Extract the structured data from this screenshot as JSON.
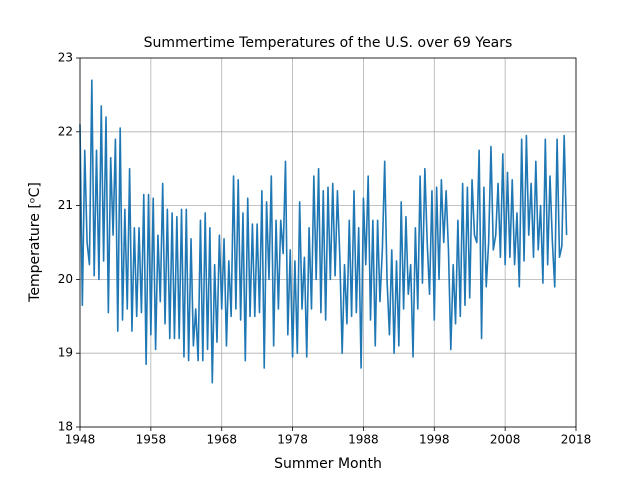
{
  "chart_data": {
    "type": "line",
    "title": "Summertime Temperatures of the U.S. over 69 Years",
    "x_label": "Summer Month",
    "y_label": "Temperature [ᵒC]",
    "color": "#1f77b4",
    "grid": true,
    "xlim": [
      1948,
      2018
    ],
    "xticks": [
      1948,
      1958,
      1968,
      1978,
      1988,
      1998,
      2008,
      2018
    ],
    "ylim": [
      18,
      23
    ],
    "yticks": [
      18,
      19,
      20,
      21,
      22,
      23
    ],
    "x": [
      1948,
      1948.33,
      1948.67,
      1949,
      1949.33,
      1949.67,
      1950,
      1950.33,
      1950.67,
      1951,
      1951.33,
      1951.67,
      1952,
      1952.33,
      1952.67,
      1953,
      1953.33,
      1953.67,
      1954,
      1954.33,
      1954.67,
      1955,
      1955.33,
      1955.67,
      1956,
      1956.33,
      1956.67,
      1957,
      1957.33,
      1957.67,
      1958,
      1958.33,
      1958.67,
      1959,
      1959.33,
      1959.67,
      1960,
      1960.33,
      1960.67,
      1961,
      1961.33,
      1961.67,
      1962,
      1962.33,
      1962.67,
      1963,
      1963.33,
      1963.67,
      1964,
      1964.33,
      1964.67,
      1965,
      1965.33,
      1965.67,
      1966,
      1966.33,
      1966.67,
      1967,
      1967.33,
      1967.67,
      1968,
      1968.33,
      1968.67,
      1969,
      1969.33,
      1969.67,
      1970,
      1970.33,
      1970.67,
      1971,
      1971.33,
      1971.67,
      1972,
      1972.33,
      1972.67,
      1973,
      1973.33,
      1973.67,
      1974,
      1974.33,
      1974.67,
      1975,
      1975.33,
      1975.67,
      1976,
      1976.33,
      1976.67,
      1977,
      1977.33,
      1977.67,
      1978,
      1978.33,
      1978.67,
      1979,
      1979.33,
      1979.67,
      1980,
      1980.33,
      1980.67,
      1981,
      1981.33,
      1981.67,
      1982,
      1982.33,
      1982.67,
      1983,
      1983.33,
      1983.67,
      1984,
      1984.33,
      1984.67,
      1985,
      1985.33,
      1985.67,
      1986,
      1986.33,
      1986.67,
      1987,
      1987.33,
      1987.67,
      1988,
      1988.33,
      1988.67,
      1989,
      1989.33,
      1989.67,
      1990,
      1990.33,
      1990.67,
      1991,
      1991.33,
      1991.67,
      1992,
      1992.33,
      1992.67,
      1993,
      1993.33,
      1993.67,
      1994,
      1994.33,
      1994.67,
      1995,
      1995.33,
      1995.67,
      1996,
      1996.33,
      1996.67,
      1997,
      1997.33,
      1997.67,
      1998,
      1998.33,
      1998.67,
      1999,
      1999.33,
      1999.67,
      2000,
      2000.33,
      2000.67,
      2001,
      2001.33,
      2001.67,
      2002,
      2002.33,
      2002.67,
      2003,
      2003.33,
      2003.67,
      2004,
      2004.33,
      2004.67,
      2005,
      2005.33,
      2005.67,
      2006,
      2006.33,
      2006.67,
      2007,
      2007.33,
      2007.67,
      2008,
      2008.33,
      2008.67,
      2009,
      2009.33,
      2009.67,
      2010,
      2010.33,
      2010.67,
      2011,
      2011.33,
      2011.67,
      2012,
      2012.33,
      2012.67,
      2013,
      2013.33,
      2013.67,
      2014,
      2014.33,
      2014.67,
      2015,
      2015.33,
      2015.67,
      2016,
      2016.33,
      2016.67
    ],
    "values": [
      22.1,
      19.65,
      21.75,
      20.5,
      20.2,
      22.7,
      20.05,
      21.75,
      20.0,
      22.35,
      20.25,
      22.2,
      19.55,
      21.65,
      20.6,
      21.9,
      19.3,
      22.05,
      19.45,
      20.95,
      19.6,
      21.5,
      19.3,
      20.7,
      19.5,
      20.7,
      19.55,
      21.15,
      18.85,
      21.15,
      19.25,
      21.1,
      19.05,
      20.6,
      19.7,
      21.3,
      19.4,
      20.95,
      19.2,
      20.9,
      19.2,
      20.85,
      19.2,
      20.95,
      18.95,
      20.95,
      18.9,
      20.55,
      19.1,
      19.6,
      18.9,
      20.8,
      18.9,
      20.9,
      19.05,
      20.7,
      18.6,
      20.2,
      19.15,
      20.6,
      19.6,
      20.55,
      19.1,
      20.25,
      19.5,
      21.4,
      19.6,
      21.35,
      19.45,
      20.9,
      18.9,
      21.1,
      19.5,
      20.75,
      19.5,
      20.75,
      19.55,
      21.2,
      18.8,
      21.05,
      20.0,
      21.4,
      19.1,
      20.8,
      19.6,
      20.8,
      20.35,
      21.6,
      19.25,
      20.4,
      18.95,
      20.25,
      19.0,
      21.05,
      19.6,
      20.3,
      18.95,
      20.7,
      19.6,
      21.4,
      20.0,
      21.5,
      19.55,
      21.2,
      19.45,
      21.25,
      20.0,
      21.3,
      20.05,
      21.2,
      20.3,
      19.0,
      20.2,
      19.4,
      20.8,
      19.5,
      21.2,
      19.55,
      20.7,
      18.8,
      21.1,
      20.2,
      21.4,
      19.45,
      20.8,
      19.1,
      20.8,
      19.7,
      20.4,
      21.6,
      20.0,
      19.25,
      20.4,
      19.0,
      20.25,
      19.1,
      21.05,
      19.6,
      20.85,
      19.8,
      20.2,
      18.95,
      20.7,
      19.6,
      21.4,
      19.95,
      21.5,
      20.5,
      19.8,
      21.2,
      19.45,
      21.25,
      20.0,
      21.35,
      20.5,
      21.2,
      20.4,
      19.05,
      20.2,
      19.4,
      20.8,
      19.5,
      21.3,
      19.65,
      21.25,
      19.75,
      21.35,
      20.6,
      20.5,
      21.75,
      19.2,
      21.25,
      19.9,
      20.5,
      21.8,
      20.4,
      20.6,
      21.3,
      20.3,
      21.7,
      20.2,
      21.45,
      20.3,
      21.35,
      20.2,
      20.9,
      19.9,
      21.9,
      20.25,
      21.95,
      20.6,
      21.3,
      20.3,
      21.6,
      20.4,
      21.0,
      19.95,
      21.9,
      20.2,
      21.4,
      20.5,
      19.9,
      21.9,
      20.3,
      20.45,
      21.95,
      20.6
    ]
  }
}
